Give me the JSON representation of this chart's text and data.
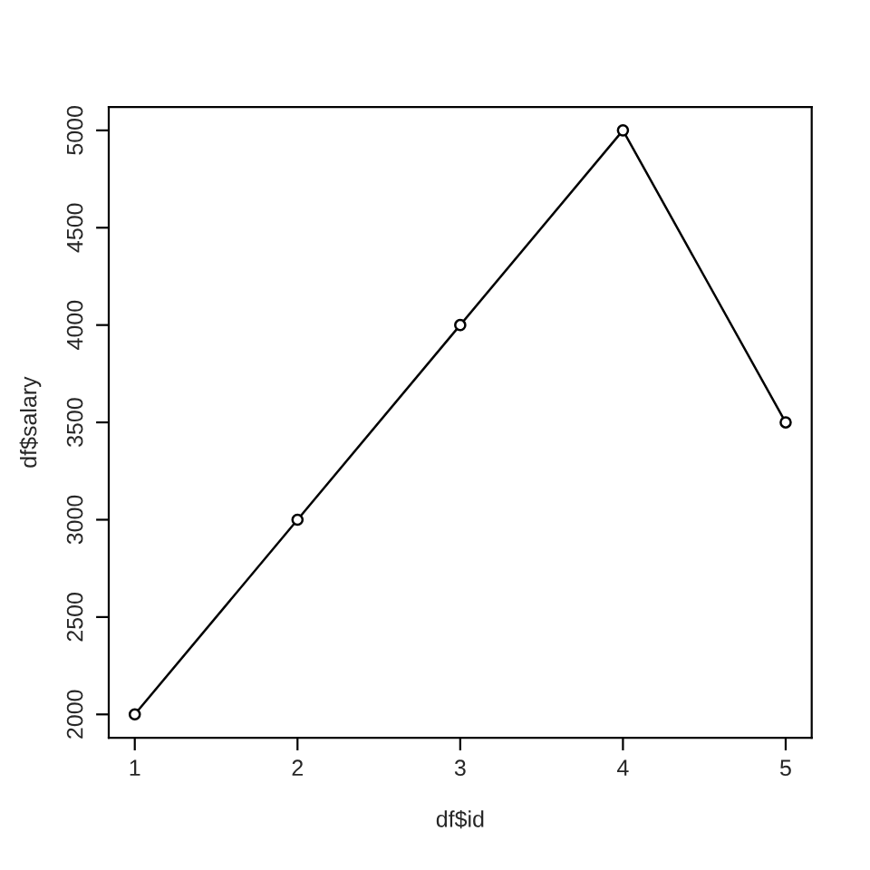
{
  "chart_data": {
    "type": "line",
    "xlabel": "df$id",
    "ylabel": "df$salary",
    "x": [
      1,
      2,
      3,
      4,
      5
    ],
    "series": [
      {
        "color": "#000000",
        "values": [
          2000,
          3000,
          4000,
          5000,
          3500
        ]
      }
    ],
    "xlim": [
      0.84,
      5.16
    ],
    "ylim": [
      1880,
      5120
    ],
    "xticks": [
      1,
      2,
      3,
      4,
      5
    ],
    "yticks": [
      2000,
      2500,
      3000,
      3500,
      4000,
      4500,
      5000
    ],
    "grid": false,
    "marker": "circle",
    "line_style": "solid"
  }
}
